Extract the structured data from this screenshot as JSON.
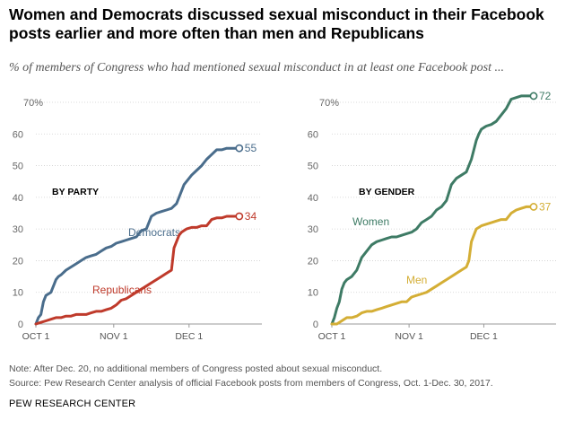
{
  "title": "Women and Democrats discussed sexual misconduct in their Facebook posts earlier and more often than men and Republicans",
  "subtitle": "% of members of Congress who had mentioned sexual misconduct in at least one Facebook post ...",
  "note": "Note: After Dec. 20, no additional members of Congress posted about sexual misconduct.",
  "source": "Source: Pew Research Center analysis of official Facebook posts from members of Congress, Oct. 1-Dec. 30, 2017.",
  "brand": "PEW RESEARCH CENTER",
  "colors": {
    "democrats": "#4a6d8c",
    "republicans": "#bf3a2b",
    "women": "#3e7b65",
    "men": "#d4ae35"
  },
  "chart_data": [
    {
      "type": "line",
      "panel_label": "BY PARTY",
      "x_unit": "days since Oct 1",
      "xlim": [
        0,
        90
      ],
      "ylim": [
        0,
        70
      ],
      "y_ticks": [
        0,
        10,
        20,
        30,
        40,
        50,
        60,
        70
      ],
      "y_tick_labels": [
        "0",
        "10",
        "20",
        "30",
        "40",
        "50",
        "60",
        "70%"
      ],
      "x_ticks": [
        0,
        31,
        61
      ],
      "x_tick_labels": [
        "OCT 1",
        "NOV 1",
        "DEC 1"
      ],
      "series": [
        {
          "name": "Democrats",
          "color_key": "democrats",
          "end_label": "55",
          "x": [
            0,
            1,
            2,
            3,
            4,
            5,
            6,
            7,
            8,
            9,
            10,
            12,
            14,
            16,
            18,
            20,
            22,
            24,
            26,
            28,
            30,
            32,
            34,
            36,
            38,
            40,
            42,
            44,
            46,
            48,
            50,
            52,
            54,
            56,
            58,
            59,
            60,
            61,
            62,
            64,
            66,
            68,
            70,
            72,
            74,
            76,
            78,
            80,
            81
          ],
          "y": [
            0,
            2,
            3,
            7,
            9,
            9.5,
            10,
            12,
            14,
            15,
            15.5,
            17,
            18,
            19,
            20,
            21,
            21.5,
            22,
            23,
            24,
            24.5,
            25.5,
            26,
            26.5,
            27,
            27.5,
            29.5,
            30,
            34,
            35,
            35.5,
            36,
            36.5,
            38,
            42,
            44,
            45,
            46,
            47,
            48.5,
            50,
            52,
            53.5,
            55,
            55,
            55.5,
            55.5,
            55.5,
            55.5
          ]
        },
        {
          "name": "Republicans",
          "color_key": "republicans",
          "end_label": "34",
          "x": [
            0,
            2,
            4,
            6,
            8,
            10,
            12,
            14,
            16,
            18,
            20,
            22,
            24,
            26,
            28,
            30,
            32,
            34,
            36,
            38,
            40,
            42,
            44,
            46,
            48,
            50,
            52,
            54,
            55,
            56,
            57,
            58,
            59,
            60,
            62,
            64,
            66,
            68,
            70,
            72,
            74,
            76,
            78,
            80,
            81
          ],
          "y": [
            0,
            0.5,
            1,
            1.5,
            2,
            2,
            2.5,
            2.5,
            3,
            3,
            3,
            3.5,
            4,
            4,
            4.5,
            5,
            6,
            7.5,
            8,
            9,
            10,
            11,
            12,
            13,
            14,
            15,
            16,
            17,
            24,
            26,
            28,
            29,
            29.5,
            30,
            30.5,
            30.5,
            31,
            31,
            33,
            33.5,
            33.5,
            34,
            34,
            34,
            34
          ]
        }
      ]
    },
    {
      "type": "line",
      "panel_label": "BY GENDER",
      "x_unit": "days since Oct 1",
      "xlim": [
        0,
        90
      ],
      "ylim": [
        0,
        70
      ],
      "y_ticks": [
        0,
        10,
        20,
        30,
        40,
        50,
        60,
        70
      ],
      "y_tick_labels": [
        "0",
        "10",
        "20",
        "30",
        "40",
        "50",
        "60",
        "70%"
      ],
      "x_ticks": [
        0,
        31,
        61
      ],
      "x_tick_labels": [
        "OCT 1",
        "NOV 1",
        "DEC 1"
      ],
      "series": [
        {
          "name": "Women",
          "color_key": "women",
          "end_label": "72",
          "x": [
            0,
            1,
            2,
            3,
            4,
            5,
            6,
            8,
            10,
            12,
            14,
            16,
            18,
            20,
            22,
            24,
            26,
            28,
            30,
            32,
            34,
            36,
            38,
            40,
            42,
            44,
            46,
            48,
            50,
            52,
            54,
            56,
            58,
            59,
            60,
            61,
            62,
            64,
            66,
            68,
            70,
            72,
            74,
            76,
            78,
            80,
            81
          ],
          "y": [
            0,
            2,
            5,
            7,
            11,
            13,
            14,
            15,
            17,
            21,
            23,
            25,
            26,
            26.5,
            27,
            27.5,
            27.5,
            28,
            28.5,
            29,
            30,
            32,
            33,
            34,
            36,
            37,
            39,
            44,
            46,
            47,
            48,
            52,
            58,
            60,
            61.5,
            62,
            62.5,
            63,
            64,
            66,
            68,
            71,
            71.5,
            72,
            72,
            72,
            72
          ]
        },
        {
          "name": "Men",
          "color_key": "men",
          "end_label": "37",
          "x": [
            0,
            2,
            4,
            6,
            8,
            10,
            12,
            14,
            16,
            18,
            20,
            22,
            24,
            26,
            28,
            30,
            32,
            34,
            36,
            38,
            40,
            42,
            44,
            46,
            48,
            50,
            52,
            54,
            55,
            56,
            57,
            58,
            60,
            62,
            64,
            66,
            68,
            70,
            72,
            74,
            76,
            78,
            80,
            81
          ],
          "y": [
            0,
            0,
            1,
            2,
            2,
            2.5,
            3.5,
            4,
            4,
            4.5,
            5,
            5.5,
            6,
            6.5,
            7,
            7,
            8.5,
            9,
            9.5,
            10,
            11,
            12,
            13,
            14,
            15,
            16,
            17,
            18,
            20,
            26,
            28,
            30,
            31,
            31.5,
            32,
            32.5,
            33,
            33,
            35,
            36,
            36.5,
            37,
            37,
            37
          ]
        }
      ]
    }
  ]
}
